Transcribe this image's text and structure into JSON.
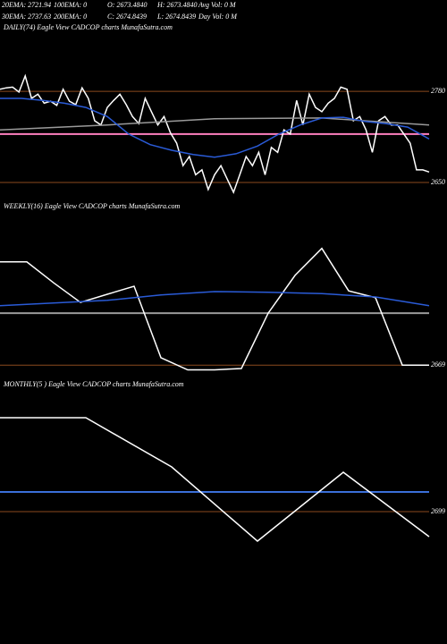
{
  "header": {
    "line1": [
      "20EMA: 2721.94",
      "100EMA: 0",
      "O: 2673.4840",
      "H: 2673.4840",
      "Avg Vol: 0  M"
    ],
    "line2": [
      "30EMA: 2737.63",
      "200EMA: 0",
      "C: 2674.8439",
      "L: 2674.8439",
      "Day Vol: 0  M"
    ]
  },
  "chart_data": [
    {
      "type": "line",
      "title": "DAILY(74) Eagle  View  CADCOP charts MunafaSutra.com",
      "ylim": [
        2636,
        2872
      ],
      "yticks": [
        2780,
        2650
      ],
      "hlines": [
        {
          "value": 2719,
          "color": "#ff7fbf"
        }
      ],
      "series": [
        {
          "color": "#ffffff",
          "values": [
            2783,
            2785,
            2786,
            2779,
            2802,
            2770,
            2776,
            2763,
            2766,
            2760,
            2783,
            2766,
            2761,
            2785,
            2770,
            2738,
            2732,
            2757,
            2767,
            2776,
            2761,
            2744,
            2734,
            2770,
            2751,
            2732,
            2744,
            2721,
            2706,
            2674,
            2687,
            2661,
            2668,
            2640,
            2661,
            2674,
            2655,
            2636,
            2661,
            2687,
            2674,
            2693,
            2661,
            2700,
            2693,
            2725,
            2719,
            2767,
            2732,
            2776,
            2757,
            2751,
            2763,
            2770,
            2786,
            2783,
            2738,
            2744,
            2725,
            2693,
            2738,
            2744,
            2732,
            2732,
            2719,
            2706,
            2668,
            2668,
            2665
          ]
        },
        {
          "color": "#9a9a9a",
          "values": [
            2725,
            2732,
            2741,
            2742,
            2732
          ]
        },
        {
          "color": "#2a5bd7",
          "values": [
            2770,
            2770,
            2767,
            2763,
            2757,
            2744,
            2719,
            2704,
            2696,
            2690,
            2686,
            2691,
            2702,
            2719,
            2732,
            2742,
            2743,
            2737,
            2734,
            2729,
            2712
          ]
        }
      ]
    },
    {
      "type": "line",
      "title": "WEEKLY(16) Eagle  View  CADCOP charts MunafaSutra.com",
      "ylim": [
        2660,
        2892
      ],
      "yticks": [
        2669
      ],
      "hlines": [
        {
          "value": 2746,
          "color": "#9a9a9a"
        }
      ],
      "series": [
        {
          "color": "#ffffff",
          "values": [
            2822,
            2822,
            2791,
            2762,
            2774,
            2786,
            2680,
            2662,
            2662,
            2664,
            2746,
            2802,
            2842,
            2779,
            2769,
            2669,
            2669
          ]
        },
        {
          "color": "#2a5bd7",
          "values": [
            2757,
            2761,
            2765,
            2773,
            2778,
            2777,
            2775,
            2770,
            2757
          ]
        }
      ]
    },
    {
      "type": "line",
      "title": "MONTHLY(5    ) Eagle  View  CADCOP charts MunafaSutra.com",
      "ylim": [
        2556,
        2831
      ],
      "yticks": [
        2699
      ],
      "hlines": [
        {
          "value": 2721,
          "color": "#3b6fd8"
        }
      ],
      "series": [
        {
          "color": "#ffffff",
          "values": [
            2804,
            2804,
            2749,
            2666,
            2743,
            2671
          ]
        }
      ]
    }
  ]
}
